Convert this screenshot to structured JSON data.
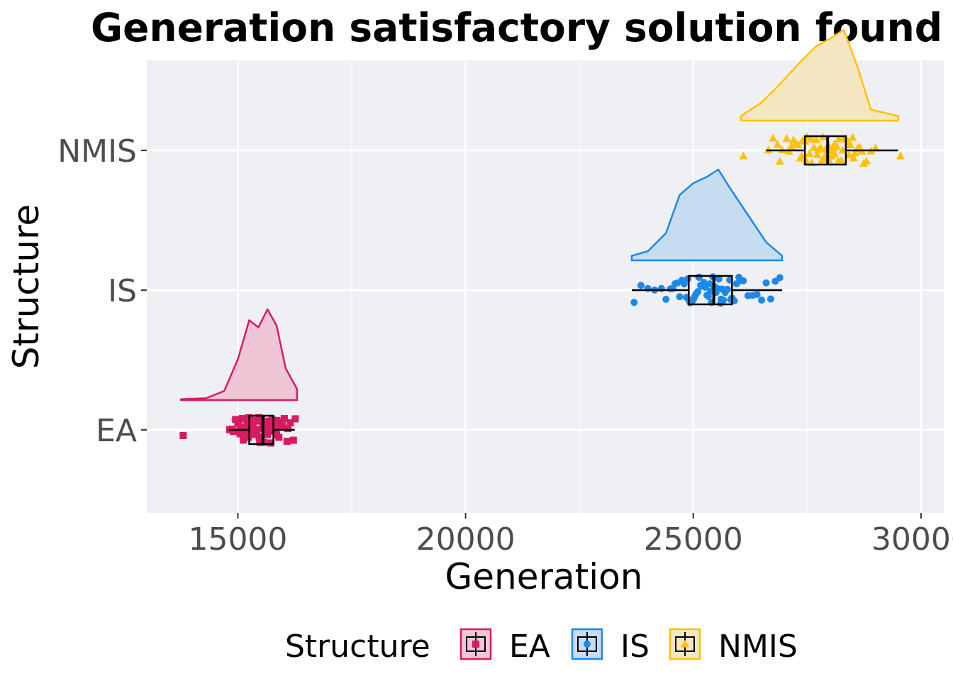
{
  "chart_data": {
    "type": "raincloud",
    "title": "Generation satisfactory solution found",
    "xlabel": "Generation",
    "ylabel": "Structure",
    "xlim": [
      13000,
      30500
    ],
    "x_ticks": [
      15000,
      20000,
      25000,
      30000
    ],
    "x_tick_labels": [
      "15000",
      "20000",
      "25000",
      "30000"
    ],
    "categories": [
      "EA",
      "IS",
      "NMIS"
    ],
    "grid": true,
    "panel_background": "#eff0f4",
    "legend": {
      "title": "Structure",
      "position": "bottom"
    },
    "series": [
      {
        "name": "EA",
        "color": "#d81b60",
        "fill": "#eec6d6",
        "marker": "square",
        "box": {
          "whisker_low": 14800,
          "q1": 15250,
          "median": 15550,
          "q3": 15780,
          "whisker_high": 16250
        },
        "density_range": [
          13750,
          16300
        ],
        "density": [
          [
            13750,
            0.01
          ],
          [
            14300,
            0.02
          ],
          [
            14700,
            0.1
          ],
          [
            15000,
            0.45
          ],
          [
            15250,
            0.88
          ],
          [
            15450,
            0.8
          ],
          [
            15650,
            1.0
          ],
          [
            15850,
            0.82
          ],
          [
            16050,
            0.35
          ],
          [
            16300,
            0.12
          ]
        ],
        "outliers": [
          13800
        ],
        "points": [
          14820,
          14900,
          14950,
          15000,
          15050,
          15080,
          15100,
          15120,
          15150,
          15180,
          15200,
          15230,
          15250,
          15270,
          15300,
          15320,
          15350,
          15380,
          15400,
          15420,
          15440,
          15460,
          15480,
          15500,
          15520,
          15540,
          15560,
          15580,
          15600,
          15620,
          15650,
          15680,
          15700,
          15720,
          15750,
          15780,
          15800,
          15830,
          15860,
          15900,
          15940,
          15980,
          16020,
          16080,
          16150,
          16220,
          14880,
          15020,
          15160,
          15330,
          15470,
          15610,
          15760,
          15920,
          16100,
          16260,
          15240,
          15570,
          15850,
          15050
        ]
      },
      {
        "name": "IS",
        "color": "#1e88e5",
        "fill": "#c6dcf1",
        "marker": "circle",
        "box": {
          "whisker_low": 23650,
          "q1": 24900,
          "median": 25450,
          "q3": 25850,
          "whisker_high": 26950
        },
        "density_range": [
          23650,
          26950
        ],
        "density": [
          [
            23650,
            0.05
          ],
          [
            24000,
            0.1
          ],
          [
            24400,
            0.3
          ],
          [
            24700,
            0.72
          ],
          [
            25000,
            0.85
          ],
          [
            25300,
            0.92
          ],
          [
            25550,
            1.0
          ],
          [
            25800,
            0.8
          ],
          [
            26200,
            0.5
          ],
          [
            26600,
            0.2
          ],
          [
            26950,
            0.05
          ]
        ],
        "outliers": [],
        "points": [
          23700,
          23850,
          24000,
          24150,
          24300,
          24400,
          24500,
          24550,
          24600,
          24650,
          24700,
          24750,
          24800,
          24850,
          24900,
          24930,
          24960,
          25000,
          25030,
          25060,
          25100,
          25130,
          25160,
          25200,
          25230,
          25260,
          25300,
          25330,
          25360,
          25400,
          25430,
          25460,
          25500,
          25530,
          25560,
          25600,
          25630,
          25660,
          25700,
          25750,
          25800,
          25850,
          25900,
          25950,
          26000,
          26100,
          26200,
          26300,
          26400,
          26500,
          26600,
          26700,
          26800,
          26900,
          24880,
          25120,
          25380,
          25610,
          25820,
          26050
        ]
      },
      {
        "name": "NMIS",
        "color": "#ffc107",
        "fill": "#f3e6c1",
        "marker": "triangle",
        "box": {
          "whisker_low": 26600,
          "q1": 27450,
          "median": 27950,
          "q3": 28350,
          "whisker_high": 29500
        },
        "density_range": [
          26050,
          29500
        ],
        "density": [
          [
            26050,
            0.05
          ],
          [
            26500,
            0.2
          ],
          [
            26900,
            0.4
          ],
          [
            27300,
            0.62
          ],
          [
            27700,
            0.82
          ],
          [
            28000,
            0.9
          ],
          [
            28300,
            1.0
          ],
          [
            28600,
            0.6
          ],
          [
            28900,
            0.12
          ],
          [
            29500,
            0.05
          ]
        ],
        "outliers": [
          26100,
          29550
        ],
        "points": [
          26650,
          26750,
          26850,
          26950,
          27050,
          27150,
          27250,
          27300,
          27350,
          27400,
          27450,
          27500,
          27550,
          27600,
          27650,
          27700,
          27750,
          27800,
          27850,
          27880,
          27910,
          27940,
          27970,
          28000,
          28030,
          28060,
          28100,
          28150,
          28200,
          28250,
          28300,
          28350,
          28400,
          28450,
          28500,
          28550,
          28600,
          28650,
          28700,
          28800,
          28900,
          29000,
          27200,
          27480,
          27720,
          27960,
          28180,
          28420,
          28650,
          27600,
          27820,
          28080,
          28280,
          27380,
          28520,
          26900,
          27100,
          28740,
          28100,
          27900
        ]
      }
    ]
  }
}
